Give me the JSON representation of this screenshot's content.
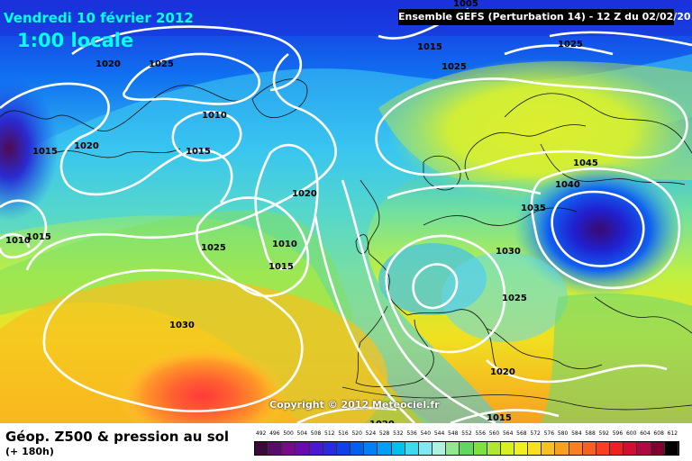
{
  "header": {
    "date": "Vendredi 10 février 2012",
    "time": "1:00 locale",
    "model": "Ensemble GEFS (Perturbation 14)  -  12 Z du 02/02/2012"
  },
  "copyright": "Copyright © 2012 Meteociel.fr",
  "footer": {
    "title": "Géop. Z500 & pression au sol",
    "subtitle": "(+ 180h)"
  },
  "isobars": {
    "labels": [
      "1005",
      "1015",
      "1025",
      "1020",
      "1025",
      "1025",
      "1010",
      "1020",
      "1015",
      "1015",
      "1045",
      "1040",
      "1020",
      "1035",
      "1010",
      "1015",
      "1025",
      "1010",
      "1015",
      "1030",
      "1025",
      "1030",
      "1020",
      "1015",
      "1020"
    ]
  },
  "colors": {
    "cyan_text": "#00ffff",
    "isobar": "#ffffff",
    "land_border": "#101010",
    "high_center": "#ff4040",
    "low_center": "#3a0a70"
  },
  "legend": {
    "ticks": [
      "492",
      "496",
      "500",
      "504",
      "508",
      "512",
      "516",
      "520",
      "524",
      "528",
      "532",
      "536",
      "540",
      "544",
      "548",
      "552",
      "556",
      "560",
      "564",
      "568",
      "572",
      "576",
      "580",
      "584",
      "588",
      "592",
      "596",
      "600",
      "604",
      "608",
      "612"
    ],
    "colors": [
      "#3a0a3a",
      "#5a0a6a",
      "#7a0a8a",
      "#6a0ab0",
      "#4a1ad0",
      "#2a2ae0",
      "#1040e8",
      "#0060f0",
      "#0080f8",
      "#00a0f8",
      "#00c0f0",
      "#40d8f0",
      "#80e8f0",
      "#b0f0e0",
      "#90e890",
      "#60d860",
      "#80e040",
      "#b0e830",
      "#d8f020",
      "#f0f020",
      "#f8e020",
      "#f8c020",
      "#f8a020",
      "#f88020",
      "#f86020",
      "#f84020",
      "#f02020",
      "#d01030",
      "#b00840",
      "#800030",
      "#000000"
    ]
  }
}
